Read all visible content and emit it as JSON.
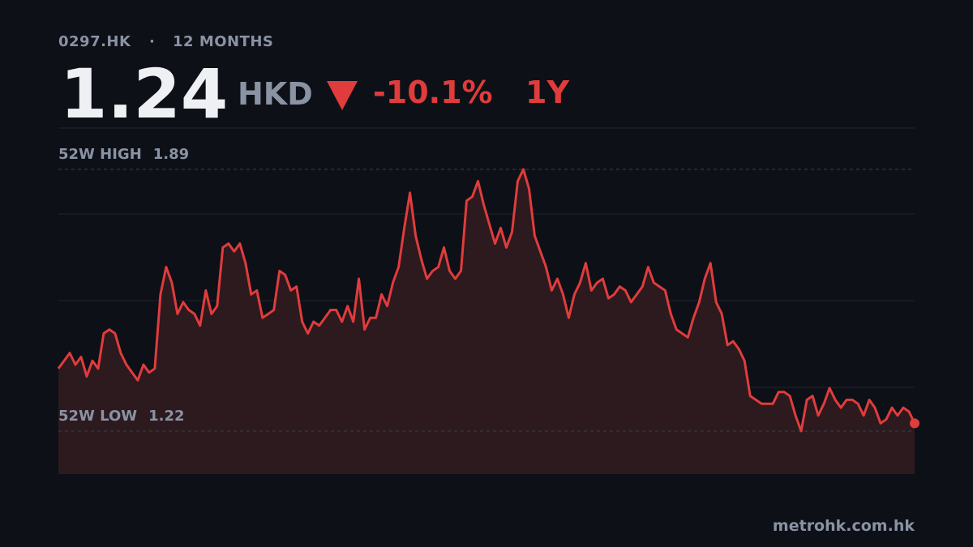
{
  "chart_data": {
    "type": "line",
    "ticker": "0297.HK",
    "separator": "·",
    "period": "12 MONTHS",
    "price": 1.24,
    "currency": "HKD",
    "change": "-10.1%",
    "range": "1Y",
    "high": {
      "label": "52W HIGH",
      "value": 1.89
    },
    "low": {
      "label": "52W LOW",
      "value": 1.22
    },
    "source": "metrohk.com.hk",
    "color": "#e03c3c",
    "ylim": [
      1.11,
      1.89
    ],
    "values": [
      1.38,
      1.4,
      1.42,
      1.39,
      1.41,
      1.36,
      1.4,
      1.38,
      1.47,
      1.48,
      1.47,
      1.42,
      1.39,
      1.37,
      1.35,
      1.39,
      1.37,
      1.38,
      1.57,
      1.64,
      1.6,
      1.52,
      1.55,
      1.53,
      1.52,
      1.49,
      1.58,
      1.52,
      1.54,
      1.69,
      1.7,
      1.68,
      1.7,
      1.65,
      1.57,
      1.58,
      1.51,
      1.52,
      1.53,
      1.63,
      1.62,
      1.58,
      1.59,
      1.5,
      1.47,
      1.5,
      1.49,
      1.51,
      1.53,
      1.53,
      1.5,
      1.54,
      1.5,
      1.61,
      1.48,
      1.51,
      1.51,
      1.57,
      1.54,
      1.6,
      1.64,
      1.74,
      1.83,
      1.72,
      1.66,
      1.61,
      1.63,
      1.64,
      1.69,
      1.63,
      1.61,
      1.63,
      1.81,
      1.82,
      1.86,
      1.8,
      1.75,
      1.7,
      1.74,
      1.69,
      1.73,
      1.86,
      1.89,
      1.84,
      1.72,
      1.68,
      1.64,
      1.58,
      1.61,
      1.57,
      1.51,
      1.57,
      1.6,
      1.65,
      1.58,
      1.6,
      1.61,
      1.56,
      1.57,
      1.59,
      1.58,
      1.55,
      1.57,
      1.59,
      1.64,
      1.6,
      1.59,
      1.58,
      1.52,
      1.48,
      1.47,
      1.46,
      1.51,
      1.55,
      1.61,
      1.65,
      1.55,
      1.52,
      1.44,
      1.45,
      1.43,
      1.4,
      1.31,
      1.3,
      1.29,
      1.29,
      1.29,
      1.32,
      1.32,
      1.31,
      1.26,
      1.22,
      1.3,
      1.31,
      1.26,
      1.29,
      1.33,
      1.3,
      1.28,
      1.3,
      1.3,
      1.29,
      1.26,
      1.3,
      1.28,
      1.24,
      1.25,
      1.28,
      1.26,
      1.28,
      1.27,
      1.24
    ]
  }
}
